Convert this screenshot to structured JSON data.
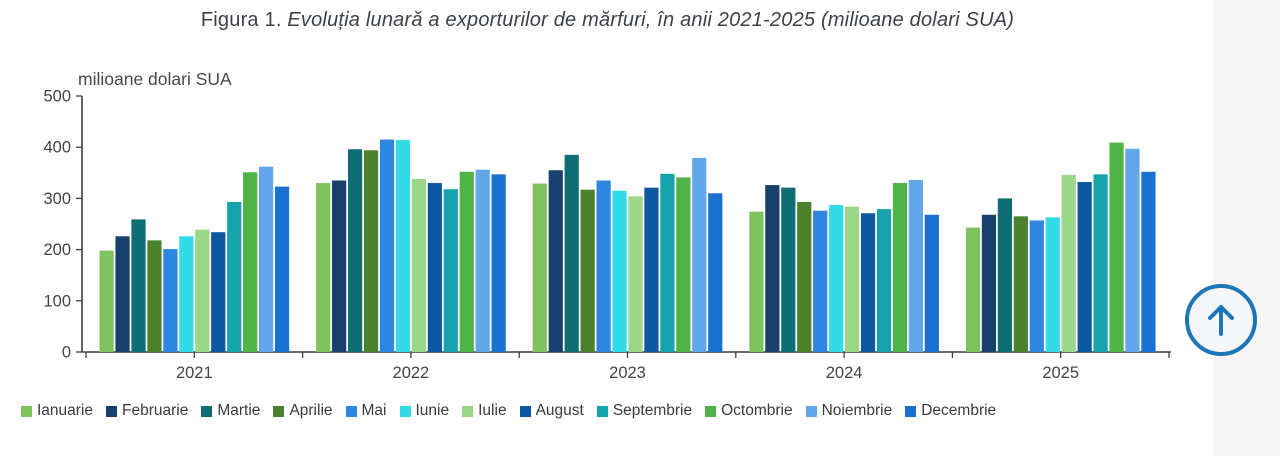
{
  "title": {
    "prefix": "Figura 1.",
    "italic": "Evoluția lunară a exporturilor de mărfuri, în anii 2021-2025 (milioane dolari SUA)"
  },
  "axis_unit": "milioane dolari SUA",
  "back_to_top": {
    "icon": "arrow-up-icon",
    "accent_color": "#1d76b8"
  },
  "chart_data": {
    "type": "bar",
    "title": "Evoluția lunară a exporturilor de mărfuri, în anii 2021-2025 (milioane dolari SUA)",
    "ylabel": "milioane dolari SUA",
    "xlabel": "",
    "ylim": [
      0,
      500
    ],
    "yticks": [
      0,
      100,
      200,
      300,
      400,
      500
    ],
    "grid": false,
    "legend_position": "bottom",
    "categories": [
      "2021",
      "2022",
      "2023",
      "2024",
      "2025"
    ],
    "series": [
      {
        "name": "Ianuarie",
        "color": "#7fc35e",
        "values": [
          198,
          330,
          329,
          274,
          243
        ]
      },
      {
        "name": "Februarie",
        "color": "#17406c",
        "values": [
          226,
          335,
          355,
          326,
          268
        ]
      },
      {
        "name": "Martie",
        "color": "#0e6e74",
        "values": [
          259,
          396,
          385,
          321,
          300
        ]
      },
      {
        "name": "Aprilie",
        "color": "#4c822e",
        "values": [
          218,
          394,
          317,
          293,
          265
        ]
      },
      {
        "name": "Mai",
        "color": "#2e86e0",
        "values": [
          201,
          415,
          335,
          276,
          257
        ]
      },
      {
        "name": "Iunie",
        "color": "#32dce6",
        "values": [
          226,
          414,
          315,
          287,
          263
        ]
      },
      {
        "name": "Iulie",
        "color": "#9cd687",
        "values": [
          239,
          338,
          304,
          284,
          346
        ]
      },
      {
        "name": "August",
        "color": "#0e58a2",
        "values": [
          234,
          330,
          321,
          271,
          332
        ]
      },
      {
        "name": "Septembrie",
        "color": "#16a3ab",
        "values": [
          293,
          318,
          348,
          279,
          347
        ]
      },
      {
        "name": "Octombrie",
        "color": "#50b347",
        "values": [
          351,
          352,
          341,
          330,
          409
        ]
      },
      {
        "name": "Noiembrie",
        "color": "#62a7e9",
        "values": [
          362,
          356,
          379,
          336,
          397
        ]
      },
      {
        "name": "Decembrie",
        "color": "#1b71ce",
        "values": [
          323,
          347,
          310,
          268,
          352
        ]
      }
    ]
  }
}
